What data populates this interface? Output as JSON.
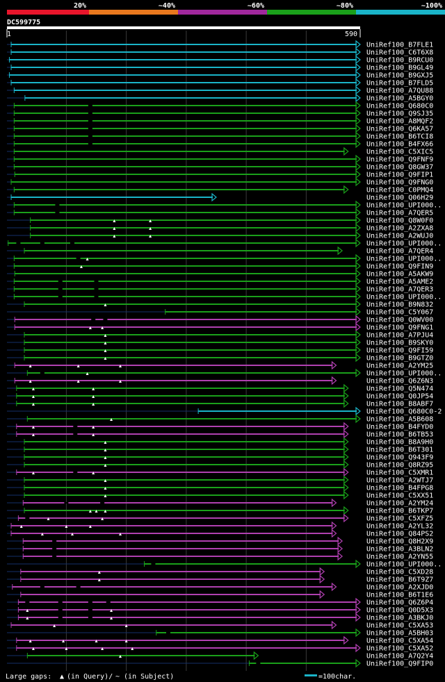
{
  "chart_data": {
    "type": "alignment-overview",
    "query_id": "DC599775",
    "query_start": "1",
    "query_end": "590",
    "query_length": 590,
    "identity_legend": [
      {
        "label": "20%",
        "color": "#e8152b"
      },
      {
        "label": "~40%",
        "color": "#e8781e"
      },
      {
        "label": "~60%",
        "color": "#a0289c"
      },
      {
        "label": "~80%",
        "color": "#1aa01a"
      },
      {
        "label": "~100%",
        "color": "#1ab4c8"
      }
    ],
    "tick_interval": 100,
    "hits": [
      {
        "name": "UniRef100_B7FLE1",
        "start": 8,
        "end": 590,
        "color": "cyan"
      },
      {
        "name": "UniRef100_C6T6X8",
        "start": 8,
        "end": 590,
        "color": "cyan"
      },
      {
        "name": "UniRef100_B9RCU0",
        "start": 5,
        "end": 590,
        "color": "cyan"
      },
      {
        "name": "UniRef100_B9GL49",
        "start": 8,
        "end": 590,
        "color": "cyan"
      },
      {
        "name": "UniRef100_B9GXJ5",
        "start": 5,
        "end": 590,
        "color": "cyan"
      },
      {
        "name": "UniRef100_B7FLD5",
        "start": 8,
        "end": 590,
        "color": "cyan"
      },
      {
        "name": "UniRef100_A7QU88",
        "start": 13,
        "end": 590,
        "color": "cyan"
      },
      {
        "name": "UniRef100_A5BGY0",
        "start": 31,
        "end": 590,
        "color": "cyan"
      },
      {
        "name": "UniRef100_Q680C0",
        "start": 13,
        "end": 590,
        "color": "green",
        "gaps": [
          [
            140,
            "s"
          ]
        ]
      },
      {
        "name": "UniRef100_Q9SJ35",
        "start": 13,
        "end": 590,
        "color": "green",
        "gaps": [
          [
            140,
            "s"
          ]
        ]
      },
      {
        "name": "UniRef100_A8MQF2",
        "start": 13,
        "end": 590,
        "color": "green",
        "gaps": [
          [
            140,
            "s"
          ]
        ]
      },
      {
        "name": "UniRef100_Q6KA57",
        "start": 13,
        "end": 590,
        "color": "green",
        "gaps": [
          [
            140,
            "s"
          ]
        ]
      },
      {
        "name": "UniRef100_B6TCI8",
        "start": 13,
        "end": 590,
        "color": "green",
        "gaps": [
          [
            140,
            "s"
          ]
        ]
      },
      {
        "name": "UniRef100_B4FX66",
        "start": 13,
        "end": 590,
        "color": "green",
        "gaps": [
          [
            140,
            "s"
          ]
        ]
      },
      {
        "name": "UniRef100_C5XIC5",
        "start": 13,
        "end": 570,
        "color": "green"
      },
      {
        "name": "UniRef100_Q9FNF9",
        "start": 13,
        "end": 590,
        "color": "green"
      },
      {
        "name": "UniRef100_Q8GW37",
        "start": 13,
        "end": 590,
        "color": "green"
      },
      {
        "name": "UniRef100_Q9FIP1",
        "start": 14,
        "end": 590,
        "color": "green"
      },
      {
        "name": "UniRef100_Q9FNG0",
        "start": 8,
        "end": 590,
        "color": "green"
      },
      {
        "name": "UniRef100_C0PMQ4",
        "start": 13,
        "end": 570,
        "color": "green"
      },
      {
        "name": "UniRef100_Q06H29",
        "start": 8,
        "end": 350,
        "color": "cyan"
      },
      {
        "name": "UniRef100_UPI000..",
        "start": 13,
        "end": 590,
        "color": "green",
        "gaps": [
          [
            85,
            "s"
          ]
        ]
      },
      {
        "name": "UniRef100_A7QER5",
        "start": 13,
        "end": 590,
        "color": "green",
        "gaps": [
          [
            85,
            "s"
          ]
        ]
      },
      {
        "name": "UniRef100_Q8W0F0",
        "start": 40,
        "end": 590,
        "color": "green",
        "gaps": [
          [
            180,
            "q"
          ],
          [
            240,
            "q"
          ]
        ]
      },
      {
        "name": "UniRef100_A2ZXA8",
        "start": 40,
        "end": 590,
        "color": "green",
        "gaps": [
          [
            180,
            "q"
          ],
          [
            240,
            "q"
          ]
        ]
      },
      {
        "name": "UniRef100_A2WUJ0",
        "start": 40,
        "end": 590,
        "color": "green",
        "gaps": [
          [
            180,
            "q"
          ],
          [
            240,
            "q"
          ]
        ]
      },
      {
        "name": "UniRef100_UPI000..",
        "start": 3,
        "end": 590,
        "color": "green",
        "gaps": [
          [
            20,
            "s"
          ],
          [
            60,
            "s"
          ],
          [
            110,
            "s"
          ]
        ]
      },
      {
        "name": "UniRef100_A7QER4",
        "start": 30,
        "end": 560,
        "color": "green"
      },
      {
        "name": "UniRef100_UPI000..",
        "start": 13,
        "end": 590,
        "color": "green",
        "gaps": [
          [
            120,
            "s"
          ],
          [
            135,
            "q"
          ]
        ]
      },
      {
        "name": "UniRef100_Q9FIN9",
        "start": 13,
        "end": 590,
        "color": "green",
        "gaps": [
          [
            125,
            "q"
          ]
        ]
      },
      {
        "name": "UniRef100_A5AKW9",
        "start": 14,
        "end": 590,
        "color": "green"
      },
      {
        "name": "UniRef100_A5AME2",
        "start": 13,
        "end": 590,
        "color": "green",
        "gaps": [
          [
            90,
            "s"
          ],
          [
            150,
            "s"
          ]
        ]
      },
      {
        "name": "UniRef100_A7QER3",
        "start": 13,
        "end": 590,
        "color": "green",
        "gaps": [
          [
            90,
            "s"
          ],
          [
            150,
            "s"
          ]
        ]
      },
      {
        "name": "UniRef100_UPI000..",
        "start": 13,
        "end": 590,
        "color": "green",
        "gaps": [
          [
            90,
            "s"
          ],
          [
            150,
            "s"
          ]
        ]
      },
      {
        "name": "UniRef100_B9N832",
        "start": 30,
        "end": 590,
        "color": "green",
        "gaps": [
          [
            165,
            "q"
          ]
        ]
      },
      {
        "name": "UniRef100_C5Y067",
        "start": 265,
        "end": 590,
        "color": "green"
      },
      {
        "name": "UniRef100_Q0WV00",
        "start": 14,
        "end": 590,
        "color": "magenta",
        "gaps": [
          [
            145,
            "s"
          ],
          [
            165,
            "s"
          ]
        ]
      },
      {
        "name": "UniRef100_Q9FNG1",
        "start": 14,
        "end": 590,
        "color": "magenta",
        "gaps": [
          [
            140,
            "q"
          ],
          [
            160,
            "q"
          ]
        ]
      },
      {
        "name": "UniRef100_A7PJU4",
        "start": 30,
        "end": 590,
        "color": "green",
        "gaps": [
          [
            165,
            "q"
          ]
        ]
      },
      {
        "name": "UniRef100_B9SKY0",
        "start": 30,
        "end": 590,
        "color": "green",
        "gaps": [
          [
            165,
            "q"
          ]
        ]
      },
      {
        "name": "UniRef100_Q9FI59",
        "start": 30,
        "end": 590,
        "color": "green",
        "gaps": [
          [
            165,
            "q"
          ]
        ]
      },
      {
        "name": "UniRef100_B9GTZ0",
        "start": 30,
        "end": 590,
        "color": "green",
        "gaps": [
          [
            165,
            "q"
          ]
        ]
      },
      {
        "name": "UniRef100_A2YM25",
        "start": 14,
        "end": 550,
        "color": "magenta",
        "gaps": [
          [
            40,
            "q"
          ],
          [
            120,
            "q"
          ],
          [
            190,
            "q"
          ]
        ]
      },
      {
        "name": "UniRef100_UPI000..",
        "start": 35,
        "end": 590,
        "color": "green",
        "gaps": [
          [
            60,
            "s"
          ],
          [
            135,
            "q"
          ]
        ]
      },
      {
        "name": "UniRef100_Q6Z6N3",
        "start": 14,
        "end": 550,
        "color": "magenta",
        "gaps": [
          [
            40,
            "q"
          ],
          [
            120,
            "q"
          ],
          [
            190,
            "q"
          ]
        ]
      },
      {
        "name": "UniRef100_Q5N474",
        "start": 17,
        "end": 570,
        "color": "green",
        "gaps": [
          [
            45,
            "q"
          ],
          [
            145,
            "q"
          ]
        ]
      },
      {
        "name": "UniRef100_Q0JP54",
        "start": 17,
        "end": 570,
        "color": "green",
        "gaps": [
          [
            45,
            "q"
          ],
          [
            145,
            "q"
          ]
        ]
      },
      {
        "name": "UniRef100_B8ABF7",
        "start": 17,
        "end": 570,
        "color": "green",
        "gaps": [
          [
            45,
            "q"
          ],
          [
            145,
            "q"
          ]
        ]
      },
      {
        "name": "UniRef100_Q680C0-2",
        "start": 320,
        "end": 590,
        "color": "cyan"
      },
      {
        "name": "UniRef100_A5B608",
        "start": 35,
        "end": 590,
        "color": "green",
        "gaps": [
          [
            175,
            "q"
          ]
        ]
      },
      {
        "name": "UniRef100_B4FYD0",
        "start": 17,
        "end": 570,
        "color": "magenta",
        "gaps": [
          [
            45,
            "q"
          ],
          [
            115,
            "s"
          ],
          [
            145,
            "q"
          ]
        ]
      },
      {
        "name": "UniRef100_B6TB53",
        "start": 17,
        "end": 570,
        "color": "magenta",
        "gaps": [
          [
            45,
            "q"
          ],
          [
            115,
            "s"
          ],
          [
            145,
            "q"
          ]
        ]
      },
      {
        "name": "UniRef100_B8A9H0",
        "start": 30,
        "end": 570,
        "color": "green",
        "gaps": [
          [
            165,
            "q"
          ]
        ]
      },
      {
        "name": "UniRef100_B6T301",
        "start": 30,
        "end": 570,
        "color": "green",
        "gaps": [
          [
            165,
            "q"
          ]
        ]
      },
      {
        "name": "UniRef100_Q943F9",
        "start": 30,
        "end": 570,
        "color": "green",
        "gaps": [
          [
            165,
            "q"
          ]
        ]
      },
      {
        "name": "UniRef100_Q8RZ95",
        "start": 30,
        "end": 570,
        "color": "green",
        "gaps": [
          [
            165,
            "q"
          ]
        ]
      },
      {
        "name": "UniRef100_C5XMR1",
        "start": 17,
        "end": 570,
        "color": "magenta",
        "gaps": [
          [
            45,
            "q"
          ],
          [
            115,
            "s"
          ],
          [
            145,
            "q"
          ]
        ]
      },
      {
        "name": "UniRef100_A2WTJ7",
        "start": 30,
        "end": 570,
        "color": "green",
        "gaps": [
          [
            165,
            "q"
          ]
        ]
      },
      {
        "name": "UniRef100_B4FPG8",
        "start": 30,
        "end": 570,
        "color": "green",
        "gaps": [
          [
            165,
            "q"
          ]
        ]
      },
      {
        "name": "UniRef100_C5XX51",
        "start": 30,
        "end": 570,
        "color": "green",
        "gaps": [
          [
            165,
            "q"
          ]
        ]
      },
      {
        "name": "UniRef100_A2YM24",
        "start": 28,
        "end": 550,
        "color": "magenta",
        "gaps": [
          [
            100,
            "s"
          ],
          [
            160,
            "s"
          ]
        ]
      },
      {
        "name": "UniRef100_B6TKP7",
        "start": 30,
        "end": 570,
        "color": "green",
        "gaps": [
          [
            140,
            "q"
          ],
          [
            150,
            "q"
          ],
          [
            165,
            "q"
          ]
        ]
      },
      {
        "name": "UniRef100_C5XFZ5",
        "start": 20,
        "end": 570,
        "color": "magenta",
        "gaps": [
          [
            35,
            "s"
          ],
          [
            70,
            "q"
          ],
          [
            160,
            "q"
          ]
        ]
      },
      {
        "name": "UniRef100_A2YL32",
        "start": 8,
        "end": 550,
        "color": "magenta",
        "gaps": [
          [
            25,
            "q"
          ],
          [
            100,
            "q"
          ],
          [
            140,
            "q"
          ]
        ]
      },
      {
        "name": "UniRef100_Q84PS2",
        "start": 8,
        "end": 550,
        "color": "magenta",
        "gaps": [
          [
            60,
            "q"
          ],
          [
            110,
            "q"
          ],
          [
            190,
            "q"
          ]
        ]
      },
      {
        "name": "UniRef100_Q8H2X9",
        "start": 28,
        "end": 560,
        "color": "magenta",
        "gaps": [
          [
            80,
            "s"
          ]
        ]
      },
      {
        "name": "UniRef100_A3BLN2",
        "start": 28,
        "end": 560,
        "color": "magenta",
        "gaps": [
          [
            80,
            "s"
          ]
        ]
      },
      {
        "name": "UniRef100_A2YN55",
        "start": 28,
        "end": 560,
        "color": "magenta",
        "gaps": [
          [
            80,
            "s"
          ]
        ]
      },
      {
        "name": "UniRef100_UPI000..",
        "start": 230,
        "end": 590,
        "color": "green",
        "gaps": [
          [
            245,
            "s"
          ]
        ]
      },
      {
        "name": "UniRef100_C5XD28",
        "start": 24,
        "end": 530,
        "color": "magenta",
        "gaps": [
          [
            155,
            "q"
          ]
        ]
      },
      {
        "name": "UniRef100_B6T9Z7",
        "start": 24,
        "end": 530,
        "color": "magenta",
        "gaps": [
          [
            155,
            "q"
          ]
        ]
      },
      {
        "name": "UniRef100_A2XJD0",
        "start": 10,
        "end": 550,
        "color": "magenta",
        "gaps": [
          [
            60,
            "s"
          ],
          [
            120,
            "s"
          ]
        ]
      },
      {
        "name": "UniRef100_B6T1E6",
        "start": 24,
        "end": 530,
        "color": "magenta"
      },
      {
        "name": "UniRef100_Q6Z6P4",
        "start": 20,
        "end": 590,
        "color": "magenta",
        "gaps": [
          [
            35,
            "s"
          ],
          [
            90,
            "s"
          ],
          [
            140,
            "s"
          ],
          [
            170,
            "s"
          ]
        ]
      },
      {
        "name": "UniRef100_Q0D5X3",
        "start": 20,
        "end": 590,
        "color": "magenta",
        "gaps": [
          [
            35,
            "q"
          ],
          [
            90,
            "s"
          ],
          [
            140,
            "s"
          ],
          [
            175,
            "q"
          ]
        ]
      },
      {
        "name": "UniRef100_A3BKJ0",
        "start": 20,
        "end": 590,
        "color": "magenta",
        "gaps": [
          [
            35,
            "q"
          ],
          [
            90,
            "s"
          ],
          [
            140,
            "s"
          ],
          [
            175,
            "q"
          ]
        ]
      },
      {
        "name": "UniRef100_C5XA53",
        "start": 8,
        "end": 550,
        "color": "magenta",
        "gaps": [
          [
            80,
            "q"
          ],
          [
            200,
            "q"
          ]
        ]
      },
      {
        "name": "UniRef100_A5BH03",
        "start": 250,
        "end": 590,
        "color": "green",
        "gaps": [
          [
            270,
            "s"
          ]
        ]
      },
      {
        "name": "UniRef100_C5XA54",
        "start": 17,
        "end": 570,
        "color": "magenta",
        "gaps": [
          [
            40,
            "q"
          ],
          [
            95,
            "q"
          ],
          [
            150,
            "q"
          ],
          [
            200,
            "q"
          ]
        ]
      },
      {
        "name": "UniRef100_C5XA52",
        "start": 17,
        "end": 590,
        "color": "magenta",
        "gaps": [
          [
            45,
            "q"
          ],
          [
            100,
            "q"
          ],
          [
            160,
            "q"
          ],
          [
            210,
            "q"
          ]
        ]
      },
      {
        "name": "UniRef100_A7Q2Y4",
        "start": 35,
        "end": 420,
        "color": "green",
        "gaps": [
          [
            190,
            "q"
          ]
        ]
      },
      {
        "name": "UniRef100_Q9FIP0",
        "start": 405,
        "end": 590,
        "color": "green",
        "gaps": [
          [
            420,
            "s"
          ]
        ]
      }
    ]
  },
  "footer": {
    "gap_label_start": "Large gaps: ",
    "gap_query": "(in Query)/",
    "gap_subject": "~ (in Subject)",
    "scale_label": "=100char."
  }
}
